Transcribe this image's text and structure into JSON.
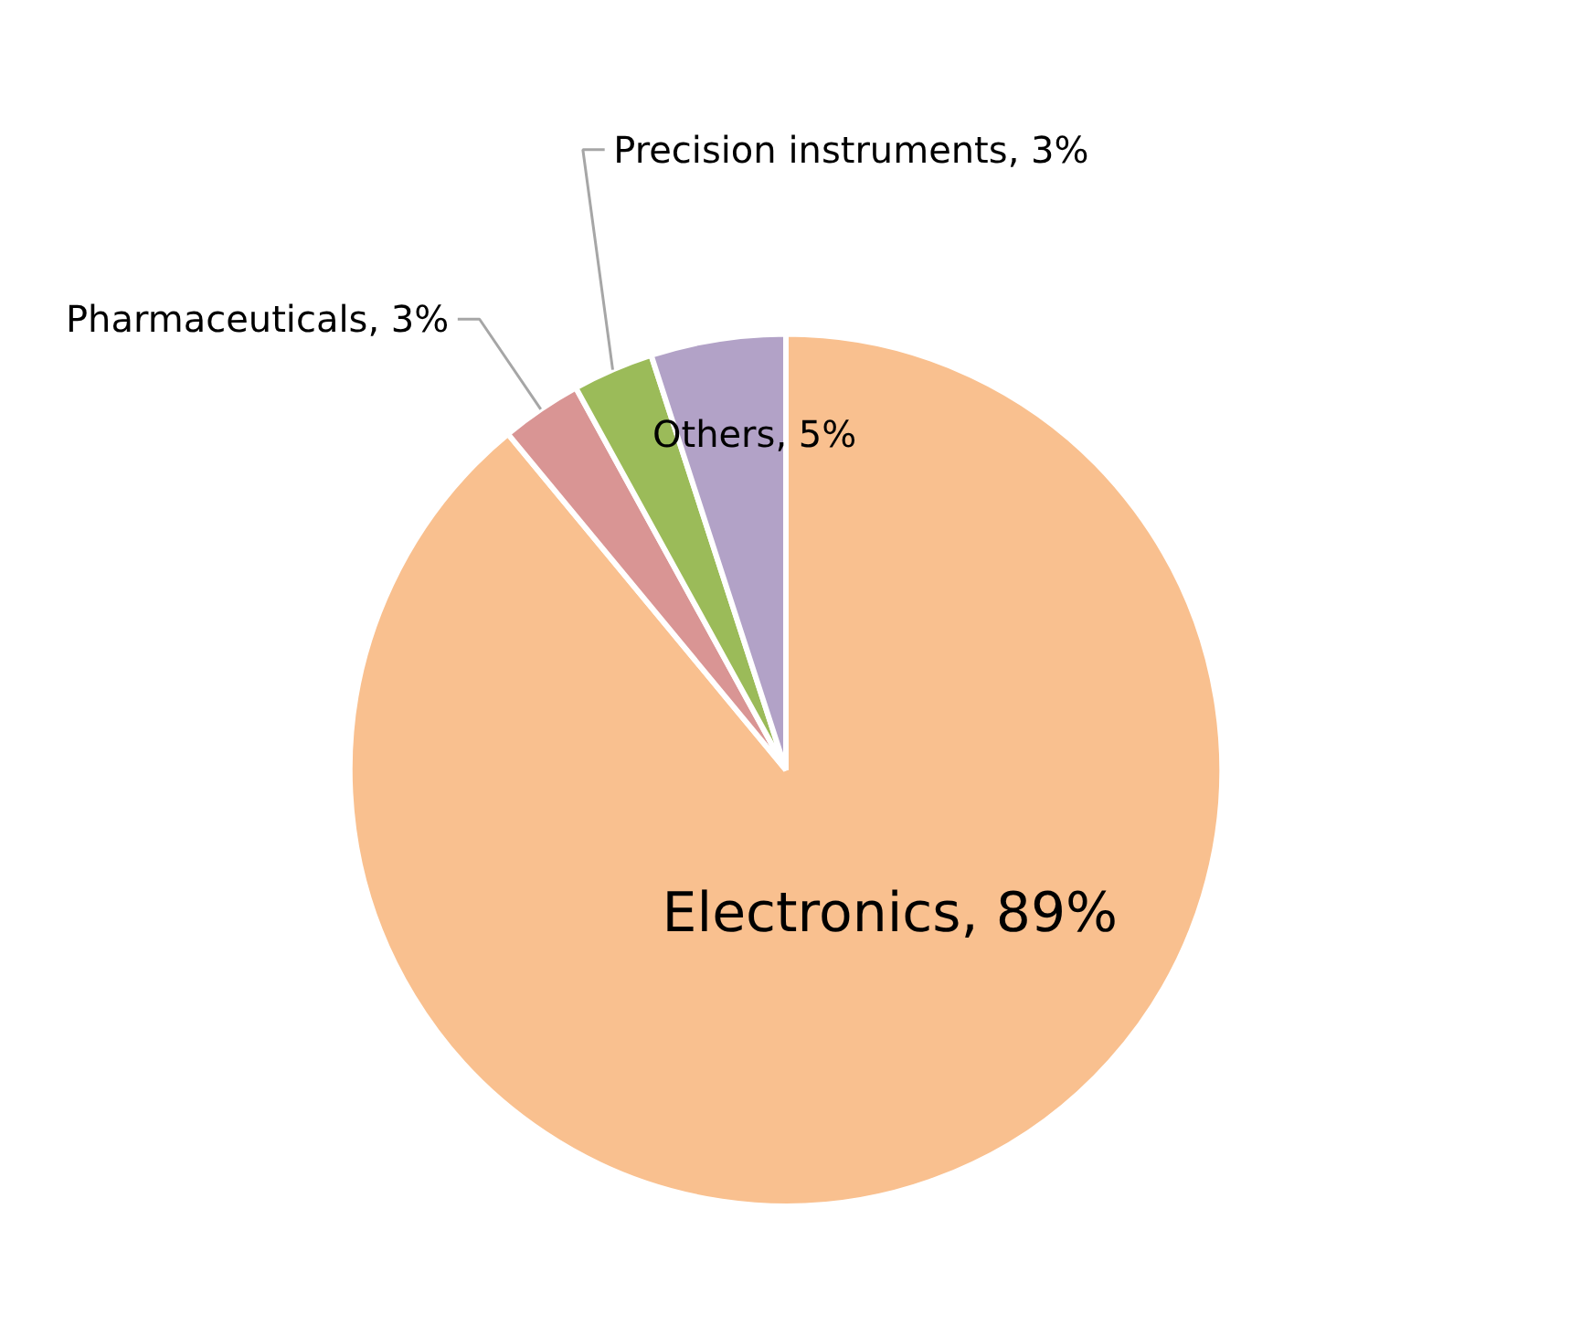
{
  "chart_data": {
    "type": "pie",
    "categories": [
      "Electronics, 89%",
      "Pharmaceuticals, 3%",
      "Precision instruments, 3%",
      "Others, 5%"
    ],
    "values": [
      89,
      3,
      3,
      5
    ],
    "colors": [
      "#f9c08f",
      "#d99594",
      "#9bbb59",
      "#b2a2c7"
    ]
  }
}
